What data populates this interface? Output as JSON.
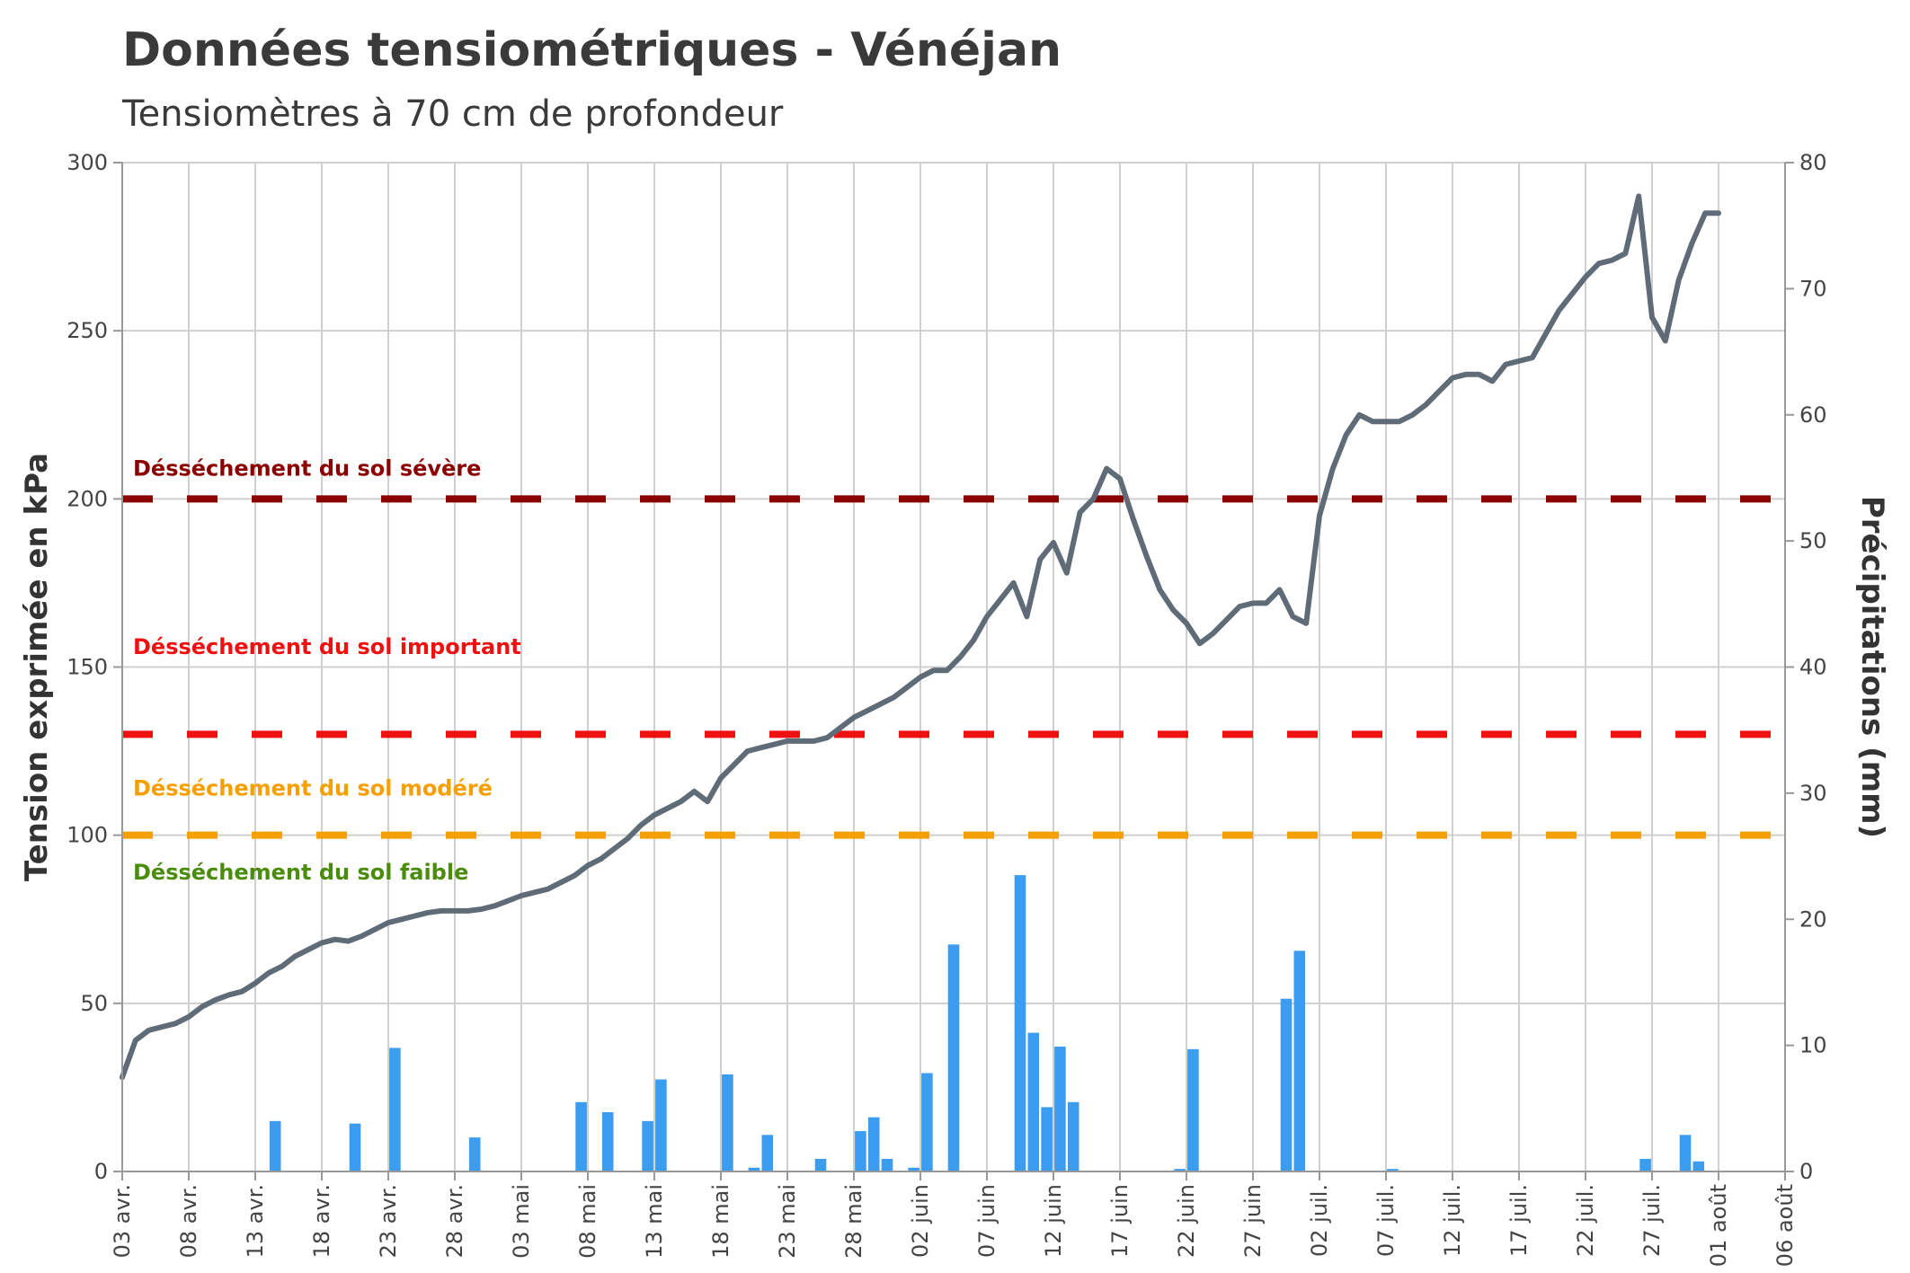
{
  "chart_data": {
    "type": "line+bar",
    "title": "Données tensiométriques - Vénéjan",
    "subtitle": "Tensiomètres à 70 cm de profondeur",
    "y_left_label": "Tension exprimée en kPa",
    "y_right_label": "Précipitations (mm)",
    "y_left_range": [
      0,
      300
    ],
    "y_right_range": [
      0,
      80
    ],
    "y_left_ticks": [
      "0",
      "50",
      "100",
      "150",
      "200",
      "250",
      "300"
    ],
    "y_right_ticks": [
      "0",
      "10",
      "20",
      "30",
      "40",
      "50",
      "60",
      "70",
      "80"
    ],
    "x_range_days": [
      0,
      125
    ],
    "x_ticks": [
      {
        "day": 0,
        "label": "03 avr."
      },
      {
        "day": 5,
        "label": "08 avr."
      },
      {
        "day": 10,
        "label": "13 avr."
      },
      {
        "day": 15,
        "label": "18 avr."
      },
      {
        "day": 20,
        "label": "23 avr."
      },
      {
        "day": 25,
        "label": "28 avr."
      },
      {
        "day": 30,
        "label": "03 mai"
      },
      {
        "day": 35,
        "label": "08 mai"
      },
      {
        "day": 40,
        "label": "13 mai"
      },
      {
        "day": 45,
        "label": "18 mai"
      },
      {
        "day": 50,
        "label": "23 mai"
      },
      {
        "day": 55,
        "label": "28 mai"
      },
      {
        "day": 60,
        "label": "02 juin"
      },
      {
        "day": 65,
        "label": "07 juin"
      },
      {
        "day": 70,
        "label": "12 juin"
      },
      {
        "day": 75,
        "label": "17 juin"
      },
      {
        "day": 80,
        "label": "22 juin"
      },
      {
        "day": 85,
        "label": "27 juin"
      },
      {
        "day": 90,
        "label": "02 juil."
      },
      {
        "day": 95,
        "label": "07 juil."
      },
      {
        "day": 100,
        "label": "12 juil."
      },
      {
        "day": 105,
        "label": "17 juil."
      },
      {
        "day": 110,
        "label": "22 juil."
      },
      {
        "day": 115,
        "label": "27 juil."
      },
      {
        "day": 120,
        "label": "01 août"
      },
      {
        "day": 125,
        "label": "06 août"
      }
    ],
    "thresholds": [
      {
        "value": 200,
        "label": "Désséchement du sol sévère",
        "color": "#8b0000",
        "label_value": 209
      },
      {
        "value": 130,
        "label": "Désséchement du sol important",
        "color": "#ee1111",
        "label_value": 156
      },
      {
        "value": 100,
        "label": "Désséchement du sol modéré",
        "color": "#f5a000",
        "label_value": 114
      },
      {
        "value": null,
        "label": "Désséchement du sol faible",
        "color": "#4a8c0c",
        "label_value": 89
      }
    ],
    "series": [
      {
        "name": "Tension",
        "axis": "left",
        "color": "#5f6b76",
        "points": [
          [
            0,
            28
          ],
          [
            1,
            39
          ],
          [
            2,
            42
          ],
          [
            3,
            43
          ],
          [
            4,
            44
          ],
          [
            5,
            46
          ],
          [
            6,
            49
          ],
          [
            7,
            51
          ],
          [
            8,
            52.5
          ],
          [
            9,
            53.5
          ],
          [
            10,
            56
          ],
          [
            11,
            59
          ],
          [
            12,
            61
          ],
          [
            13,
            64
          ],
          [
            14,
            66
          ],
          [
            15,
            68
          ],
          [
            16,
            69
          ],
          [
            17,
            68.5
          ],
          [
            18,
            70
          ],
          [
            19,
            72
          ],
          [
            20,
            74
          ],
          [
            21,
            75
          ],
          [
            22,
            76
          ],
          [
            23,
            77
          ],
          [
            24,
            77.5
          ],
          [
            25,
            77.5
          ],
          [
            26,
            77.5
          ],
          [
            27,
            78
          ],
          [
            28,
            79
          ],
          [
            29,
            80.5
          ],
          [
            30,
            82
          ],
          [
            31,
            83
          ],
          [
            32,
            84
          ],
          [
            33,
            86
          ],
          [
            34,
            88
          ],
          [
            35,
            91
          ],
          [
            36,
            93
          ],
          [
            37,
            96
          ],
          [
            38,
            99
          ],
          [
            39,
            103
          ],
          [
            40,
            106
          ],
          [
            41,
            108
          ],
          [
            42,
            110
          ],
          [
            43,
            113
          ],
          [
            44,
            110
          ],
          [
            45,
            117
          ],
          [
            46,
            121
          ],
          [
            47,
            125
          ],
          [
            48,
            126
          ],
          [
            49,
            127
          ],
          [
            50,
            128
          ],
          [
            51,
            128
          ],
          [
            52,
            128
          ],
          [
            53,
            129
          ],
          [
            54,
            132
          ],
          [
            55,
            135
          ],
          [
            56,
            137
          ],
          [
            57,
            139
          ],
          [
            58,
            141
          ],
          [
            59,
            144
          ],
          [
            60,
            147
          ],
          [
            61,
            149
          ],
          [
            62,
            149
          ],
          [
            63,
            153
          ],
          [
            64,
            158
          ],
          [
            65,
            165
          ],
          [
            66,
            170
          ],
          [
            67,
            175
          ],
          [
            68,
            165
          ],
          [
            69,
            182
          ],
          [
            70,
            187
          ],
          [
            71,
            178
          ],
          [
            72,
            196
          ],
          [
            73,
            200
          ],
          [
            74,
            209
          ],
          [
            75,
            206
          ],
          [
            76,
            194
          ],
          [
            77,
            183
          ],
          [
            78,
            173
          ],
          [
            79,
            167
          ],
          [
            80,
            163
          ],
          [
            81,
            157
          ],
          [
            82,
            160
          ],
          [
            83,
            164
          ],
          [
            84,
            168
          ],
          [
            85,
            169
          ],
          [
            86,
            169
          ],
          [
            87,
            173
          ],
          [
            88,
            165
          ],
          [
            89,
            163
          ],
          [
            90,
            195
          ],
          [
            91,
            209
          ],
          [
            92,
            219
          ],
          [
            93,
            225
          ],
          [
            94,
            223
          ],
          [
            95,
            223
          ],
          [
            96,
            223
          ],
          [
            97,
            225
          ],
          [
            98,
            228
          ],
          [
            99,
            232
          ],
          [
            100,
            236
          ],
          [
            101,
            237
          ],
          [
            102,
            237
          ],
          [
            103,
            235
          ],
          [
            104,
            240
          ],
          [
            105,
            241
          ],
          [
            106,
            242
          ],
          [
            107,
            249
          ],
          [
            108,
            256
          ],
          [
            109,
            261
          ],
          [
            110,
            266
          ],
          [
            111,
            270
          ],
          [
            112,
            271
          ],
          [
            113,
            273
          ],
          [
            114,
            290
          ],
          [
            115,
            254
          ],
          [
            116,
            247
          ],
          [
            117,
            265
          ],
          [
            118,
            276
          ],
          [
            119,
            285
          ],
          [
            120,
            285
          ]
        ]
      },
      {
        "name": "Précipitations",
        "axis": "right",
        "type": "bar",
        "color": "#3c9cf0",
        "points": [
          [
            11,
            4
          ],
          [
            17,
            3.8
          ],
          [
            20,
            9.8
          ],
          [
            26,
            2.7
          ],
          [
            34,
            5.5
          ],
          [
            36,
            4.7
          ],
          [
            39,
            4
          ],
          [
            40,
            7.3
          ],
          [
            45,
            7.7
          ],
          [
            47,
            0.3
          ],
          [
            48,
            2.9
          ],
          [
            52,
            1
          ],
          [
            55,
            3.2
          ],
          [
            56,
            4.3
          ],
          [
            57,
            1
          ],
          [
            59,
            0.3
          ],
          [
            60,
            7.8
          ],
          [
            62,
            18
          ],
          [
            67,
            23.5
          ],
          [
            68,
            11
          ],
          [
            69,
            5.1
          ],
          [
            70,
            9.9
          ],
          [
            71,
            5.5
          ],
          [
            79,
            0.2
          ],
          [
            80,
            9.7
          ],
          [
            87,
            13.7
          ],
          [
            88,
            17.5
          ],
          [
            95,
            0.2
          ],
          [
            114,
            1
          ],
          [
            117,
            2.9
          ],
          [
            118,
            0.8
          ]
        ]
      }
    ],
    "colors": {
      "grid": "#cfcfcf",
      "axis": "#999999",
      "text": "#444444"
    }
  }
}
